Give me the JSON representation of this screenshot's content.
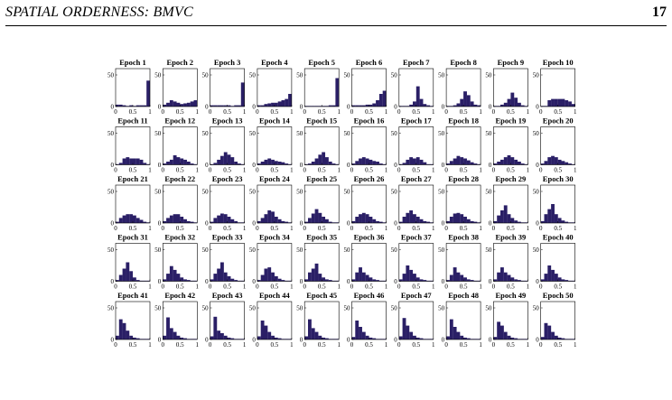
{
  "header": {
    "running_title": "SPATIAL ORDERNESS: BMVC",
    "page_number": "17"
  },
  "colors": {
    "bar": "#2a1f66",
    "axis": "#000000"
  },
  "chart_data": {
    "type": "bar",
    "description_of_layout": "50 small-multiple histograms, 5 rows x 10 columns",
    "bins": [
      0.05,
      0.15,
      0.25,
      0.35,
      0.45,
      0.55,
      0.65,
      0.75,
      0.85,
      0.95
    ],
    "xlim": [
      0,
      1
    ],
    "ylim": [
      0,
      60
    ],
    "xticks": [
      "0",
      "0.5",
      "1"
    ],
    "yticks": [
      "0",
      "50"
    ],
    "panels": [
      {
        "title": "Epoch 1",
        "values": [
          3,
          3,
          2,
          1,
          2,
          1,
          2,
          2,
          2,
          41
        ]
      },
      {
        "title": "Epoch 2",
        "values": [
          3,
          6,
          10,
          8,
          6,
          4,
          5,
          6,
          8,
          10
        ]
      },
      {
        "title": "Epoch 3",
        "values": [
          2,
          2,
          2,
          2,
          2,
          2,
          1,
          2,
          2,
          38
        ]
      },
      {
        "title": "Epoch 4",
        "values": [
          2,
          2,
          4,
          5,
          6,
          6,
          8,
          10,
          12,
          20
        ]
      },
      {
        "title": "Epoch 5",
        "values": [
          1,
          1,
          1,
          1,
          1,
          1,
          1,
          2,
          2,
          45
        ]
      },
      {
        "title": "Epoch 6",
        "values": [
          2,
          2,
          2,
          2,
          3,
          3,
          5,
          10,
          20,
          25
        ]
      },
      {
        "title": "Epoch 7",
        "values": [
          1,
          1,
          1,
          3,
          8,
          32,
          12,
          4,
          2,
          1
        ]
      },
      {
        "title": "Epoch 8",
        "values": [
          1,
          1,
          2,
          5,
          12,
          24,
          18,
          8,
          3,
          2
        ]
      },
      {
        "title": "Epoch 9",
        "values": [
          1,
          1,
          3,
          6,
          12,
          22,
          14,
          6,
          2,
          1
        ]
      },
      {
        "title": "Epoch 10",
        "values": [
          1,
          1,
          10,
          12,
          12,
          12,
          12,
          10,
          8,
          4
        ]
      },
      {
        "title": "Epoch 11",
        "values": [
          1,
          3,
          10,
          12,
          10,
          10,
          10,
          8,
          3,
          1
        ]
      },
      {
        "title": "Epoch 12",
        "values": [
          2,
          5,
          8,
          15,
          12,
          10,
          8,
          5,
          2,
          1
        ]
      },
      {
        "title": "Epoch 13",
        "values": [
          1,
          3,
          8,
          14,
          20,
          16,
          12,
          5,
          2,
          1
        ]
      },
      {
        "title": "Epoch 14",
        "values": [
          2,
          5,
          8,
          10,
          8,
          6,
          5,
          4,
          2,
          1
        ]
      },
      {
        "title": "Epoch 15",
        "values": [
          1,
          2,
          5,
          10,
          16,
          20,
          12,
          5,
          2,
          1
        ]
      },
      {
        "title": "Epoch 16",
        "values": [
          2,
          6,
          10,
          12,
          10,
          8,
          6,
          5,
          2,
          1
        ]
      },
      {
        "title": "Epoch 17",
        "values": [
          1,
          3,
          8,
          12,
          10,
          12,
          8,
          4,
          1,
          1
        ]
      },
      {
        "title": "Epoch 18",
        "values": [
          2,
          6,
          10,
          14,
          12,
          10,
          7,
          4,
          2,
          1
        ]
      },
      {
        "title": "Epoch 19",
        "values": [
          2,
          5,
          8,
          12,
          15,
          12,
          8,
          5,
          2,
          1
        ]
      },
      {
        "title": "Epoch 20",
        "values": [
          2,
          6,
          12,
          14,
          12,
          8,
          6,
          4,
          2,
          1
        ]
      },
      {
        "title": "Epoch 21",
        "values": [
          2,
          8,
          12,
          14,
          14,
          12,
          8,
          5,
          2,
          1
        ]
      },
      {
        "title": "Epoch 22",
        "values": [
          3,
          8,
          12,
          14,
          14,
          10,
          6,
          3,
          2,
          1
        ]
      },
      {
        "title": "Epoch 23",
        "values": [
          2,
          8,
          12,
          15,
          14,
          10,
          6,
          3,
          1,
          1
        ]
      },
      {
        "title": "Epoch 24",
        "values": [
          3,
          8,
          14,
          20,
          18,
          10,
          6,
          3,
          2,
          1
        ]
      },
      {
        "title": "Epoch 25",
        "values": [
          2,
          8,
          15,
          22,
          16,
          10,
          6,
          2,
          1,
          1
        ]
      },
      {
        "title": "Epoch 26",
        "values": [
          3,
          10,
          14,
          16,
          14,
          10,
          6,
          3,
          2,
          1
        ]
      },
      {
        "title": "Epoch 27",
        "values": [
          2,
          10,
          16,
          20,
          14,
          10,
          6,
          3,
          2,
          1
        ]
      },
      {
        "title": "Epoch 28",
        "values": [
          3,
          10,
          15,
          16,
          14,
          10,
          6,
          3,
          2,
          1
        ]
      },
      {
        "title": "Epoch 29",
        "values": [
          3,
          12,
          20,
          28,
          14,
          8,
          4,
          2,
          1,
          1
        ]
      },
      {
        "title": "Epoch 30",
        "values": [
          3,
          14,
          22,
          30,
          14,
          8,
          4,
          2,
          1,
          1
        ]
      },
      {
        "title": "Epoch 31",
        "values": [
          2,
          10,
          20,
          30,
          16,
          6,
          2,
          1,
          1,
          1
        ]
      },
      {
        "title": "Epoch 32",
        "values": [
          3,
          12,
          24,
          18,
          12,
          6,
          3,
          2,
          1,
          1
        ]
      },
      {
        "title": "Epoch 33",
        "values": [
          3,
          12,
          20,
          30,
          14,
          8,
          4,
          2,
          1,
          1
        ]
      },
      {
        "title": "Epoch 34",
        "values": [
          2,
          10,
          20,
          22,
          14,
          8,
          4,
          2,
          1,
          1
        ]
      },
      {
        "title": "Epoch 35",
        "values": [
          3,
          14,
          20,
          28,
          12,
          6,
          3,
          2,
          1,
          1
        ]
      },
      {
        "title": "Epoch 36",
        "values": [
          3,
          14,
          22,
          14,
          10,
          6,
          3,
          2,
          1,
          1
        ]
      },
      {
        "title": "Epoch 37",
        "values": [
          3,
          12,
          25,
          18,
          12,
          6,
          3,
          2,
          1,
          1
        ]
      },
      {
        "title": "Epoch 38",
        "values": [
          2,
          10,
          22,
          14,
          10,
          6,
          3,
          2,
          1,
          1
        ]
      },
      {
        "title": "Epoch 39",
        "values": [
          3,
          14,
          22,
          14,
          10,
          6,
          3,
          2,
          1,
          1
        ]
      },
      {
        "title": "Epoch 40",
        "values": [
          3,
          12,
          25,
          18,
          12,
          6,
          3,
          2,
          1,
          1
        ]
      },
      {
        "title": "Epoch 41",
        "values": [
          6,
          32,
          26,
          14,
          6,
          3,
          2,
          1,
          1,
          1
        ]
      },
      {
        "title": "Epoch 42",
        "values": [
          6,
          35,
          18,
          12,
          6,
          3,
          2,
          1,
          1,
          1
        ]
      },
      {
        "title": "Epoch 43",
        "values": [
          5,
          36,
          14,
          10,
          6,
          3,
          2,
          1,
          1,
          1
        ]
      },
      {
        "title": "Epoch 44",
        "values": [
          5,
          30,
          22,
          12,
          6,
          3,
          2,
          1,
          1,
          1
        ]
      },
      {
        "title": "Epoch 45",
        "values": [
          5,
          32,
          18,
          12,
          6,
          3,
          2,
          1,
          1,
          1
        ]
      },
      {
        "title": "Epoch 46",
        "values": [
          4,
          30,
          20,
          12,
          6,
          3,
          2,
          1,
          1,
          1
        ]
      },
      {
        "title": "Epoch 47",
        "values": [
          5,
          34,
          22,
          12,
          6,
          3,
          2,
          1,
          1,
          1
        ]
      },
      {
        "title": "Epoch 48",
        "values": [
          5,
          32,
          20,
          12,
          6,
          3,
          2,
          1,
          1,
          1
        ]
      },
      {
        "title": "Epoch 49",
        "values": [
          4,
          28,
          22,
          12,
          6,
          3,
          2,
          1,
          1,
          1
        ]
      },
      {
        "title": "Epoch 50",
        "values": [
          4,
          26,
          22,
          12,
          6,
          3,
          2,
          1,
          1,
          1
        ]
      }
    ]
  }
}
